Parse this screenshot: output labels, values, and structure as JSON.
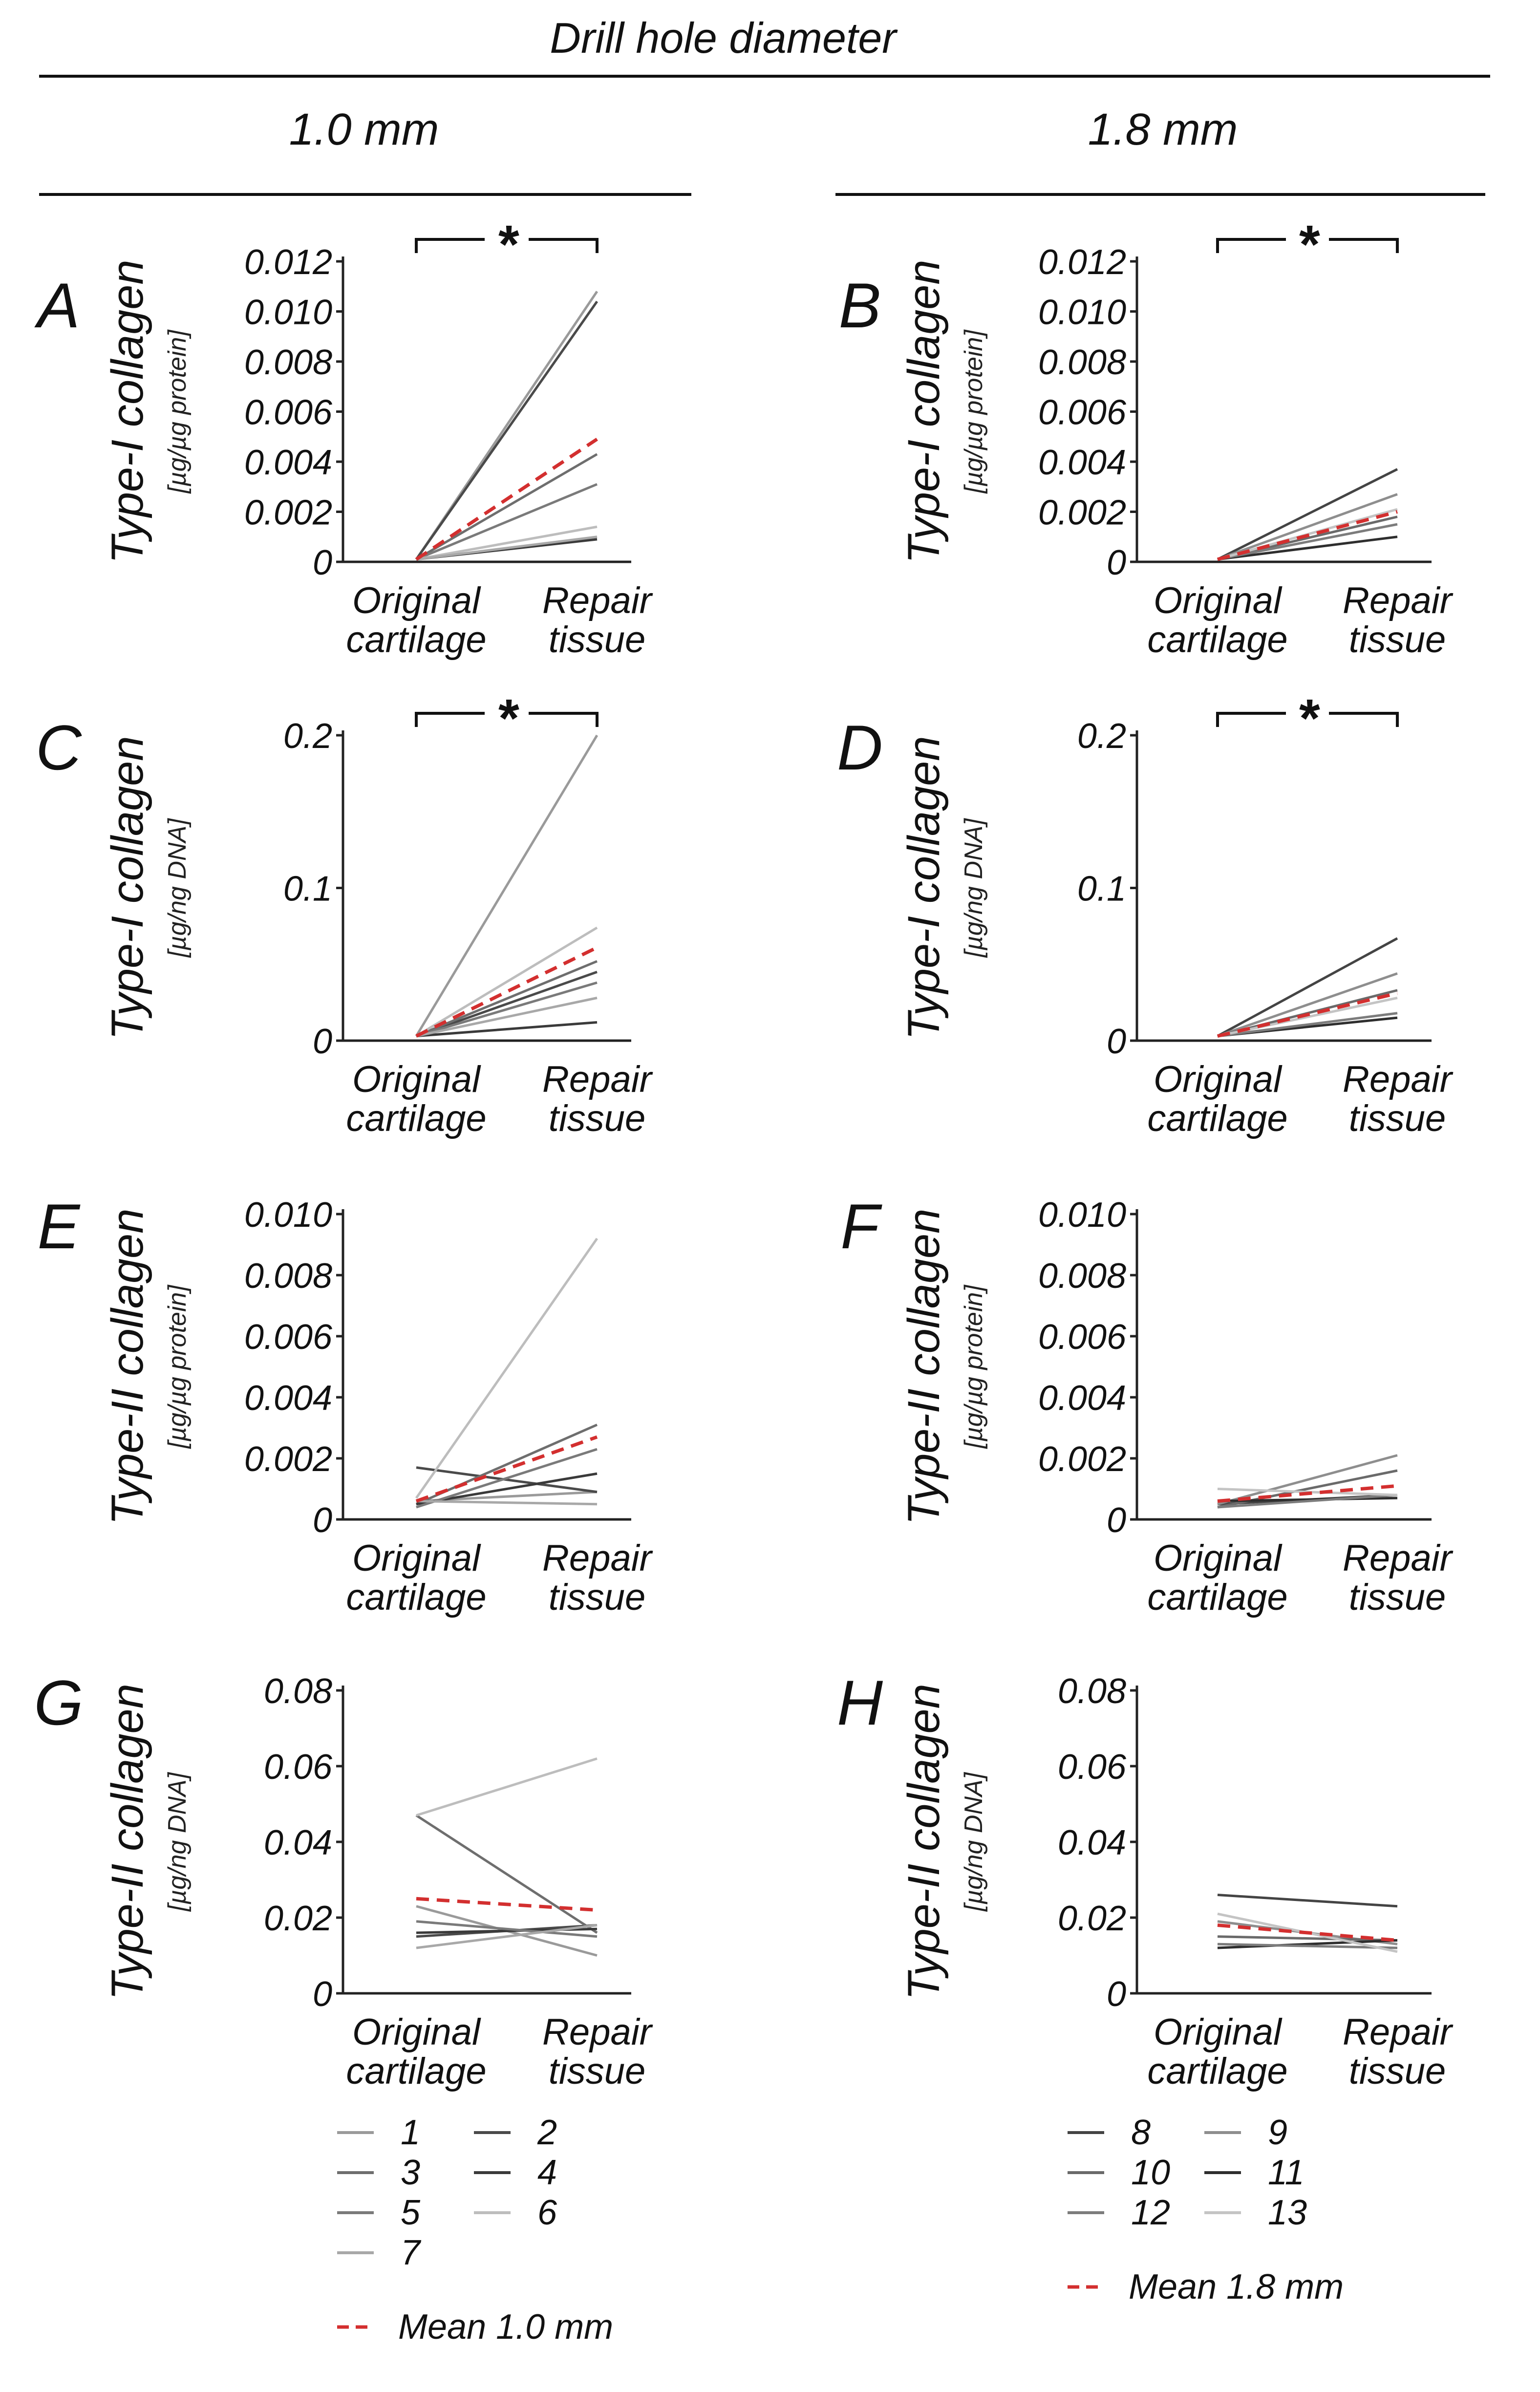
{
  "figure": {
    "title": "Drill hole diameter",
    "column_headers": [
      "1.0 mm",
      "1.8 mm"
    ],
    "category_labels": [
      [
        "Original",
        "cartilage"
      ],
      [
        "Repair",
        "tissue"
      ]
    ],
    "colors": {
      "mean": "#d32f2f",
      "axis": "#222222",
      "specimens": {
        "1": "#9a9a9a",
        "2": "#4a4a4a",
        "3": "#6e6e6e",
        "4": "#3a3a3a",
        "5": "#7a7a7a",
        "6": "#bdbdbd",
        "7": "#a8a8a8",
        "8": "#444444",
        "9": "#8e8e8e",
        "10": "#6a6a6a",
        "11": "#2e2e2e",
        "12": "#7c7c7c",
        "13": "#c4c4c4"
      }
    }
  },
  "legend": {
    "group_1": {
      "entries": [
        "1",
        "2",
        "3",
        "4",
        "5",
        "6",
        "7"
      ],
      "mean_label": "Mean 1.0 mm"
    },
    "group_2": {
      "entries": [
        "8",
        "9",
        "10",
        "11",
        "12",
        "13"
      ],
      "mean_label": "Mean 1.8 mm"
    }
  },
  "chart_data": [
    {
      "panel": "A",
      "type": "line",
      "group": "1.0 mm",
      "ylabel": "Type-I collagen",
      "yunit": "[µg/µg protein]",
      "categories": [
        "Original cartilage",
        "Repair tissue"
      ],
      "ylim": [
        0,
        0.012
      ],
      "yticks": [
        "0",
        "0.002",
        "0.004",
        "0.006",
        "0.008",
        "0.010",
        "0.012"
      ],
      "significance": "*",
      "series": [
        {
          "name": "1",
          "values": [
            0.0001,
            0.0108
          ]
        },
        {
          "name": "2",
          "values": [
            0.0001,
            0.0104
          ]
        },
        {
          "name": "3",
          "values": [
            0.0001,
            0.0043
          ]
        },
        {
          "name": "4",
          "values": [
            0.0001,
            0.0009
          ]
        },
        {
          "name": "5",
          "values": [
            0.0001,
            0.0031
          ]
        },
        {
          "name": "6",
          "values": [
            0.0001,
            0.0014
          ]
        },
        {
          "name": "7",
          "values": [
            0.0001,
            0.001
          ]
        }
      ],
      "mean": [
        0.0001,
        0.0049
      ]
    },
    {
      "panel": "B",
      "type": "line",
      "group": "1.8 mm",
      "ylabel": "Type-I collagen",
      "yunit": "[µg/µg protein]",
      "categories": [
        "Original cartilage",
        "Repair tissue"
      ],
      "ylim": [
        0,
        0.012
      ],
      "yticks": [
        "0",
        "0.002",
        "0.004",
        "0.006",
        "0.008",
        "0.010",
        "0.012"
      ],
      "significance": "*",
      "series": [
        {
          "name": "8",
          "values": [
            0.0001,
            0.0037
          ]
        },
        {
          "name": "9",
          "values": [
            0.0001,
            0.0027
          ]
        },
        {
          "name": "10",
          "values": [
            0.0001,
            0.0018
          ]
        },
        {
          "name": "11",
          "values": [
            0.0001,
            0.001
          ]
        },
        {
          "name": "12",
          "values": [
            0.0001,
            0.0015
          ]
        },
        {
          "name": "13",
          "values": [
            0.0001,
            0.0021
          ]
        }
      ],
      "mean": [
        0.0001,
        0.002
      ]
    },
    {
      "panel": "C",
      "type": "line",
      "group": "1.0 mm",
      "ylabel": "Type-I collagen",
      "yunit": "[µg/ng DNA]",
      "categories": [
        "Original cartilage",
        "Repair tissue"
      ],
      "ylim": [
        0,
        0.2
      ],
      "yticks": [
        "0",
        "0.1",
        "0.2"
      ],
      "significance": "*",
      "series": [
        {
          "name": "1",
          "values": [
            0.003,
            0.2
          ]
        },
        {
          "name": "2",
          "values": [
            0.003,
            0.045
          ]
        },
        {
          "name": "3",
          "values": [
            0.003,
            0.052
          ]
        },
        {
          "name": "4",
          "values": [
            0.003,
            0.012
          ]
        },
        {
          "name": "5",
          "values": [
            0.003,
            0.038
          ]
        },
        {
          "name": "6",
          "values": [
            0.003,
            0.074
          ]
        },
        {
          "name": "7",
          "values": [
            0.003,
            0.028
          ]
        }
      ],
      "mean": [
        0.003,
        0.061
      ]
    },
    {
      "panel": "D",
      "type": "line",
      "group": "1.8 mm",
      "ylabel": "Type-I collagen",
      "yunit": "[µg/ng DNA]",
      "categories": [
        "Original cartilage",
        "Repair tissue"
      ],
      "ylim": [
        0,
        0.2
      ],
      "yticks": [
        "0",
        "0.1",
        "0.2"
      ],
      "significance": "*",
      "series": [
        {
          "name": "8",
          "values": [
            0.003,
            0.067
          ]
        },
        {
          "name": "9",
          "values": [
            0.003,
            0.044
          ]
        },
        {
          "name": "10",
          "values": [
            0.003,
            0.033
          ]
        },
        {
          "name": "11",
          "values": [
            0.003,
            0.015
          ]
        },
        {
          "name": "12",
          "values": [
            0.003,
            0.018
          ]
        },
        {
          "name": "13",
          "values": [
            0.003,
            0.028
          ]
        }
      ],
      "mean": [
        0.003,
        0.031
      ]
    },
    {
      "panel": "E",
      "type": "line",
      "group": "1.0 mm",
      "ylabel": "Type-II collagen",
      "yunit": "[µg/µg protein]",
      "categories": [
        "Original cartilage",
        "Repair tissue"
      ],
      "ylim": [
        0,
        0.01
      ],
      "yticks": [
        "0",
        "0.002",
        "0.004",
        "0.006",
        "0.008",
        "0.010"
      ],
      "series": [
        {
          "name": "1",
          "values": [
            0.0006,
            0.0009
          ]
        },
        {
          "name": "2",
          "values": [
            0.0017,
            0.0009
          ]
        },
        {
          "name": "3",
          "values": [
            0.0005,
            0.0031
          ]
        },
        {
          "name": "4",
          "values": [
            0.0005,
            0.0015
          ]
        },
        {
          "name": "5",
          "values": [
            0.0004,
            0.0023
          ]
        },
        {
          "name": "6",
          "values": [
            0.0007,
            0.0092
          ]
        },
        {
          "name": "7",
          "values": [
            0.0006,
            0.0005
          ]
        }
      ],
      "mean": [
        0.0006,
        0.0027
      ]
    },
    {
      "panel": "F",
      "type": "line",
      "group": "1.8 mm",
      "ylabel": "Type-II collagen",
      "yunit": "[µg/µg protein]",
      "categories": [
        "Original cartilage",
        "Repair tissue"
      ],
      "ylim": [
        0,
        0.01
      ],
      "yticks": [
        "0",
        "0.002",
        "0.004",
        "0.006",
        "0.008",
        "0.010"
      ],
      "series": [
        {
          "name": "8",
          "values": [
            0.0005,
            0.0008
          ]
        },
        {
          "name": "9",
          "values": [
            0.0005,
            0.0021
          ]
        },
        {
          "name": "10",
          "values": [
            0.0004,
            0.0016
          ]
        },
        {
          "name": "11",
          "values": [
            0.0006,
            0.0007
          ]
        },
        {
          "name": "12",
          "values": [
            0.0004,
            0.0008
          ]
        },
        {
          "name": "13",
          "values": [
            0.001,
            0.0008
          ]
        }
      ],
      "mean": [
        0.0006,
        0.0011
      ]
    },
    {
      "panel": "G",
      "type": "line",
      "group": "1.0 mm",
      "ylabel": "Type-II collagen",
      "yunit": "[µg/ng DNA]",
      "categories": [
        "Original cartilage",
        "Repair tissue"
      ],
      "ylim": [
        0,
        0.08
      ],
      "yticks": [
        "0",
        "0.02",
        "0.04",
        "0.06",
        "0.08"
      ],
      "series": [
        {
          "name": "1",
          "values": [
            0.023,
            0.01
          ]
        },
        {
          "name": "2",
          "values": [
            0.015,
            0.018
          ]
        },
        {
          "name": "3",
          "values": [
            0.047,
            0.016
          ]
        },
        {
          "name": "4",
          "values": [
            0.016,
            0.017
          ]
        },
        {
          "name": "5",
          "values": [
            0.019,
            0.015
          ]
        },
        {
          "name": "6",
          "values": [
            0.047,
            0.062
          ]
        },
        {
          "name": "7",
          "values": [
            0.012,
            0.018
          ]
        }
      ],
      "mean": [
        0.025,
        0.022
      ]
    },
    {
      "panel": "H",
      "type": "line",
      "group": "1.8 mm",
      "ylabel": "Type-II collagen",
      "yunit": "[µg/ng DNA]",
      "categories": [
        "Original cartilage",
        "Repair tissue"
      ],
      "ylim": [
        0,
        0.08
      ],
      "yticks": [
        "0",
        "0.02",
        "0.04",
        "0.06",
        "0.08"
      ],
      "series": [
        {
          "name": "8",
          "values": [
            0.026,
            0.023
          ]
        },
        {
          "name": "9",
          "values": [
            0.019,
            0.013
          ]
        },
        {
          "name": "10",
          "values": [
            0.015,
            0.014
          ]
        },
        {
          "name": "11",
          "values": [
            0.012,
            0.014
          ]
        },
        {
          "name": "12",
          "values": [
            0.013,
            0.012
          ]
        },
        {
          "name": "13",
          "values": [
            0.021,
            0.011
          ]
        }
      ],
      "mean": [
        0.018,
        0.014
      ]
    }
  ]
}
